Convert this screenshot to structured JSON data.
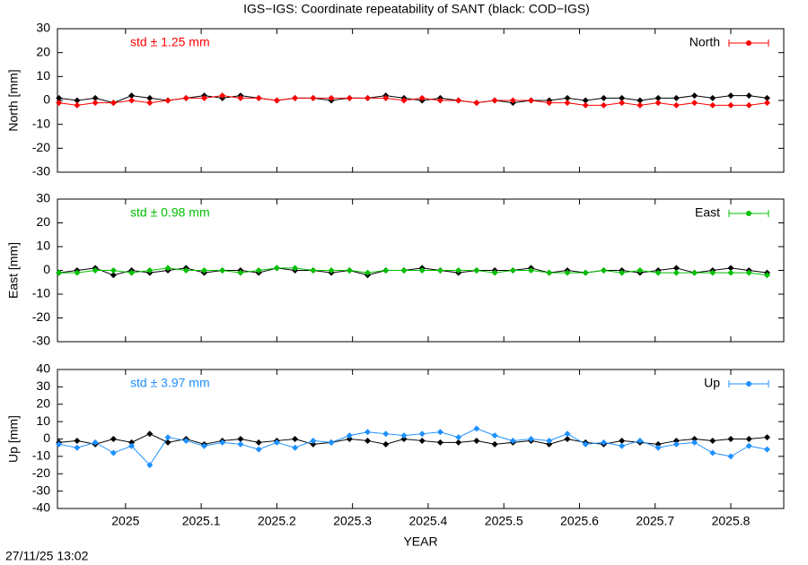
{
  "chart_data": [
    {
      "type": "line",
      "title": "IGS−IGS: Coordinate repeatability of SANT (black: COD−IGS)",
      "ylabel": "North [mm]",
      "annotation": "std ± 1.25 mm",
      "legend": "top-right",
      "x": [
        2024.912,
        2024.936,
        2024.96,
        2024.984,
        2025.008,
        2025.032,
        2025.056,
        2025.08,
        2025.104,
        2025.128,
        2025.152,
        2025.176,
        2025.2,
        2025.224,
        2025.248,
        2025.272,
        2025.296,
        2025.32,
        2025.344,
        2025.368,
        2025.392,
        2025.416,
        2025.44,
        2025.464,
        2025.488,
        2025.512,
        2025.536,
        2025.56,
        2025.584,
        2025.608,
        2025.632,
        2025.656,
        2025.68,
        2025.704,
        2025.728,
        2025.752,
        2025.776,
        2025.8,
        2025.824,
        2025.848
      ],
      "series": [
        {
          "color": "#000000",
          "values": [
            1,
            0,
            1,
            -1,
            2,
            1,
            0,
            1,
            2,
            1,
            2,
            1,
            0,
            1,
            1,
            0,
            1,
            1,
            2,
            1,
            0,
            1,
            0,
            -1,
            0,
            -1,
            0,
            0,
            1,
            0,
            1,
            1,
            0,
            1,
            1,
            2,
            1,
            2,
            2,
            1
          ]
        },
        {
          "name": "North",
          "color": "#ff0000",
          "values": [
            -1,
            -2,
            -1,
            -1,
            0,
            -1,
            0,
            1,
            1,
            2,
            1,
            1,
            0,
            1,
            1,
            1,
            1,
            1,
            1,
            0,
            1,
            0,
            0,
            -1,
            0,
            0,
            0,
            -1,
            -1,
            -2,
            -2,
            -1,
            -2,
            -1,
            -2,
            -1,
            -2,
            -2,
            -2,
            -1
          ]
        }
      ],
      "xlim": [
        2024.91,
        2025.87
      ],
      "xticks": [
        2025,
        2025.1,
        2025.2,
        2025.3,
        2025.4,
        2025.5,
        2025.6,
        2025.7,
        2025.8
      ],
      "ylim": [
        -30,
        30
      ],
      "yticks": [
        -30,
        -20,
        -10,
        0,
        10,
        20,
        30
      ]
    },
    {
      "type": "line",
      "ylabel": "East [mm]",
      "annotation": "std ± 0.98 mm",
      "legend": "top-right",
      "x": [
        2024.912,
        2024.936,
        2024.96,
        2024.984,
        2025.008,
        2025.032,
        2025.056,
        2025.08,
        2025.104,
        2025.128,
        2025.152,
        2025.176,
        2025.2,
        2025.224,
        2025.248,
        2025.272,
        2025.296,
        2025.32,
        2025.344,
        2025.368,
        2025.392,
        2025.416,
        2025.44,
        2025.464,
        2025.488,
        2025.512,
        2025.536,
        2025.56,
        2025.584,
        2025.608,
        2025.632,
        2025.656,
        2025.68,
        2025.704,
        2025.728,
        2025.752,
        2025.776,
        2025.8,
        2025.824,
        2025.848
      ],
      "series": [
        {
          "color": "#000000",
          "values": [
            -1,
            0,
            1,
            -2,
            0,
            -1,
            0,
            1,
            -1,
            0,
            0,
            -1,
            1,
            0,
            0,
            -1,
            0,
            -2,
            0,
            0,
            1,
            0,
            -1,
            0,
            0,
            0,
            1,
            -1,
            0,
            -1,
            0,
            0,
            -1,
            0,
            1,
            -1,
            0,
            1,
            0,
            -1
          ]
        },
        {
          "name": "East",
          "color": "#00c000",
          "values": [
            -1,
            -1,
            0,
            0,
            -1,
            0,
            1,
            0,
            0,
            0,
            -1,
            0,
            1,
            1,
            0,
            0,
            0,
            -1,
            0,
            0,
            0,
            0,
            0,
            0,
            -1,
            0,
            0,
            -1,
            -1,
            -1,
            0,
            -1,
            0,
            -1,
            -1,
            -1,
            -1,
            -1,
            -1,
            -2
          ]
        }
      ],
      "xlim": [
        2024.91,
        2025.87
      ],
      "xticks": [
        2025,
        2025.1,
        2025.2,
        2025.3,
        2025.4,
        2025.5,
        2025.6,
        2025.7,
        2025.8
      ],
      "ylim": [
        -30,
        30
      ],
      "yticks": [
        -30,
        -20,
        -10,
        0,
        10,
        20,
        30
      ]
    },
    {
      "type": "line",
      "ylabel": "Up [mm]",
      "xlabel": "YEAR",
      "annotation": "std ± 3.97 mm",
      "legend": "top-right",
      "x": [
        2024.912,
        2024.936,
        2024.96,
        2024.984,
        2025.008,
        2025.032,
        2025.056,
        2025.08,
        2025.104,
        2025.128,
        2025.152,
        2025.176,
        2025.2,
        2025.224,
        2025.248,
        2025.272,
        2025.296,
        2025.32,
        2025.344,
        2025.368,
        2025.392,
        2025.416,
        2025.44,
        2025.464,
        2025.488,
        2025.512,
        2025.536,
        2025.56,
        2025.584,
        2025.608,
        2025.632,
        2025.656,
        2025.68,
        2025.704,
        2025.728,
        2025.752,
        2025.776,
        2025.8,
        2025.824,
        2025.848
      ],
      "series": [
        {
          "color": "#000000",
          "values": [
            -2,
            -1,
            -3,
            0,
            -2,
            3,
            -2,
            0,
            -3,
            -1,
            0,
            -2,
            -1,
            0,
            -3,
            -2,
            0,
            -1,
            -3,
            0,
            -1,
            -2,
            -2,
            -1,
            -3,
            -2,
            -1,
            -3,
            0,
            -2,
            -3,
            -1,
            -2,
            -3,
            -1,
            0,
            -1,
            0,
            0,
            1
          ]
        },
        {
          "name": "Up",
          "color": "#1e90ff",
          "values": [
            -3,
            -5,
            -2,
            -8,
            -4,
            -15,
            1,
            -1,
            -4,
            -2,
            -3,
            -6,
            -2,
            -5,
            -1,
            -2,
            2,
            4,
            3,
            2,
            3,
            4,
            1,
            6,
            2,
            -1,
            0,
            -1,
            3,
            -3,
            -2,
            -4,
            -1,
            -5,
            -3,
            -2,
            -8,
            -10,
            -4,
            -6
          ]
        }
      ],
      "xlim": [
        2024.91,
        2025.87
      ],
      "xticks": [
        2025,
        2025.1,
        2025.2,
        2025.3,
        2025.4,
        2025.5,
        2025.6,
        2025.7,
        2025.8
      ],
      "ylim": [
        -40,
        40
      ],
      "yticks": [
        -40,
        -30,
        -20,
        -10,
        0,
        10,
        20,
        30,
        40
      ]
    }
  ],
  "timestamp": "27/11/25 13:02"
}
